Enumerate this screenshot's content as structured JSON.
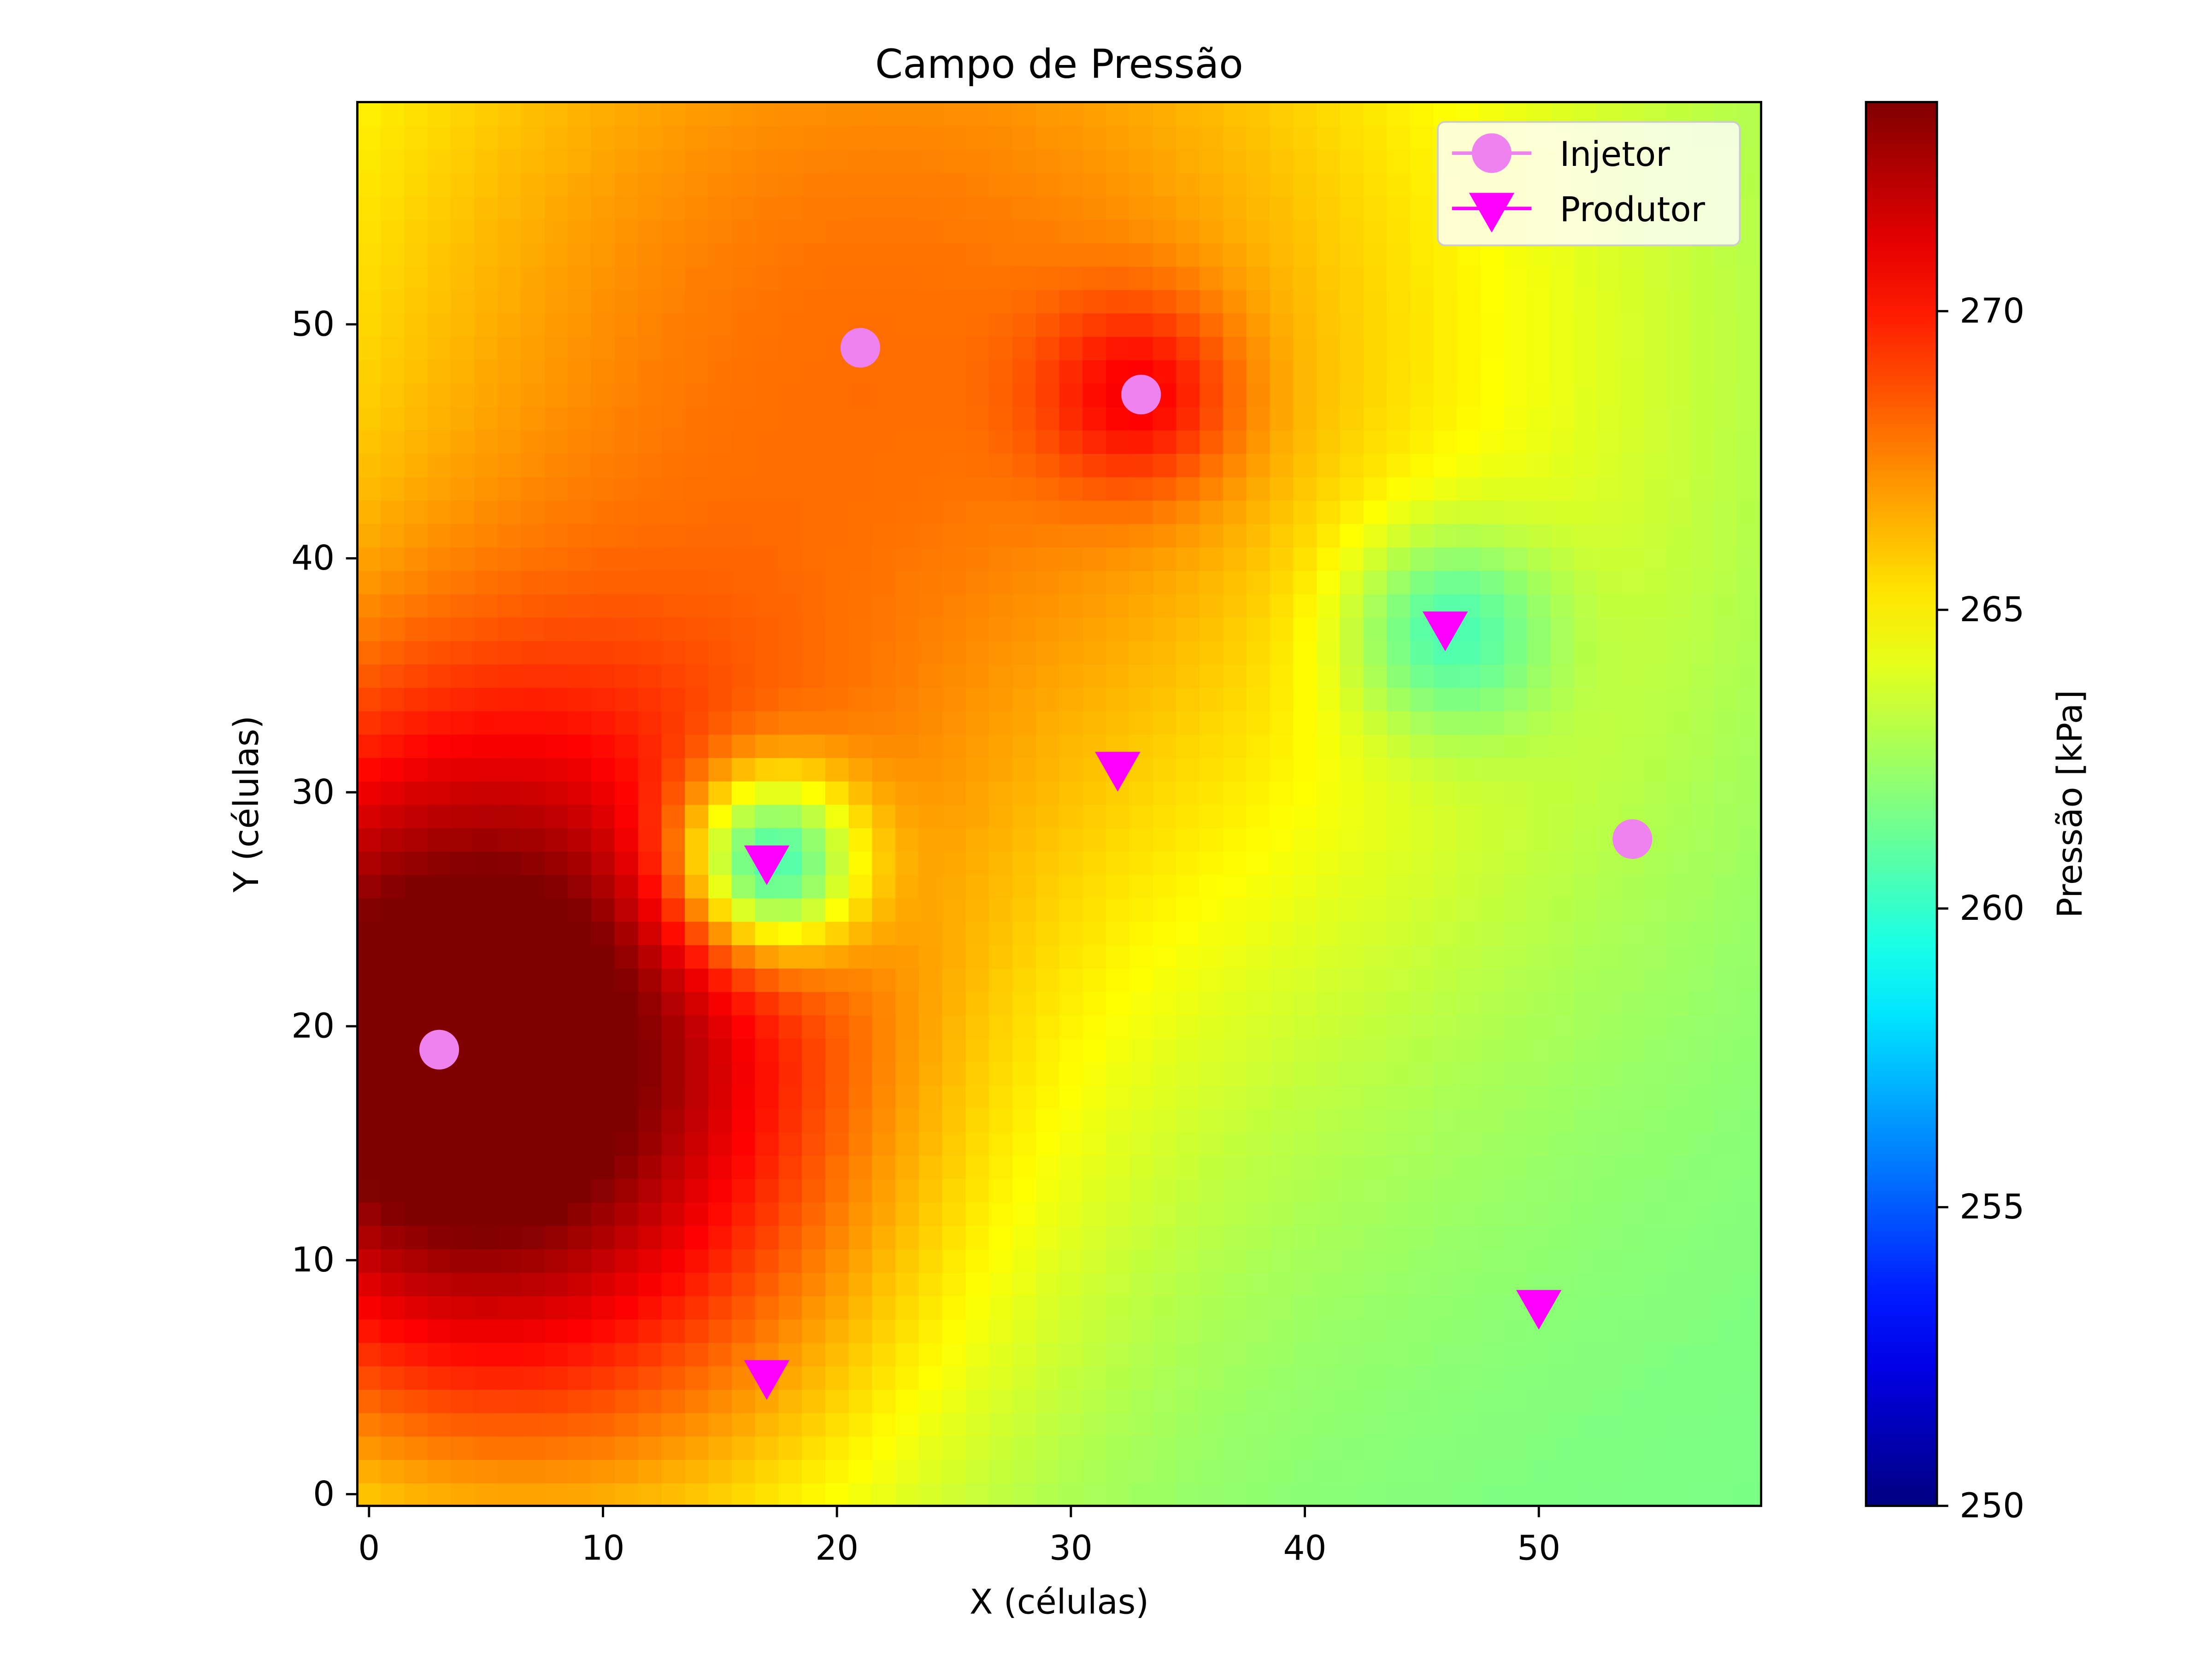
{
  "chart_data": {
    "type": "heatmap",
    "title": "Campo de Pressão",
    "xlabel": "X (células)",
    "ylabel": "Y (células)",
    "grid_size": [
      60,
      60
    ],
    "xlim": [
      -0.5,
      59.5
    ],
    "ylim": [
      -0.5,
      59.5
    ],
    "xticks": [
      0,
      10,
      20,
      30,
      40,
      50
    ],
    "yticks": [
      0,
      10,
      20,
      30,
      40,
      50
    ],
    "grid": false,
    "colorbar": {
      "label": "Pressão [kPa]",
      "min": 250,
      "max": 273.5,
      "ticks": [
        250,
        255,
        260,
        265,
        270
      ],
      "colormap": "jet"
    },
    "field_model": {
      "base": 261.5,
      "sources": [
        {
          "x": 3,
          "y": 19,
          "amp": 11,
          "sigma": 11
        },
        {
          "x": 22,
          "y": 49,
          "amp": 6.5,
          "sigma": 22
        },
        {
          "x": 33,
          "y": 47,
          "amp": 3.5,
          "sigma": 3
        },
        {
          "x": 17,
          "y": 27,
          "amp": -9,
          "sigma": 2.8
        },
        {
          "x": 46,
          "y": 37,
          "amp": -4,
          "sigma": 3.2
        },
        {
          "x": 10,
          "y": 6,
          "amp": 3,
          "sigma": 12
        }
      ]
    },
    "legend": {
      "placement": "upper-right",
      "entries": [
        {
          "label": "Injetor",
          "marker": "circle",
          "color": "#ee82ee"
        },
        {
          "label": "Produtor",
          "marker": "triangle-down",
          "color": "#ff00ff"
        }
      ]
    },
    "injectors": [
      {
        "x": 3,
        "y": 19
      },
      {
        "x": 21,
        "y": 49
      },
      {
        "x": 33,
        "y": 47
      },
      {
        "x": 54,
        "y": 28
      }
    ],
    "producers": [
      {
        "x": 17,
        "y": 27
      },
      {
        "x": 46,
        "y": 37
      },
      {
        "x": 32,
        "y": 31
      },
      {
        "x": 17,
        "y": 5
      },
      {
        "x": 50,
        "y": 8
      }
    ]
  }
}
